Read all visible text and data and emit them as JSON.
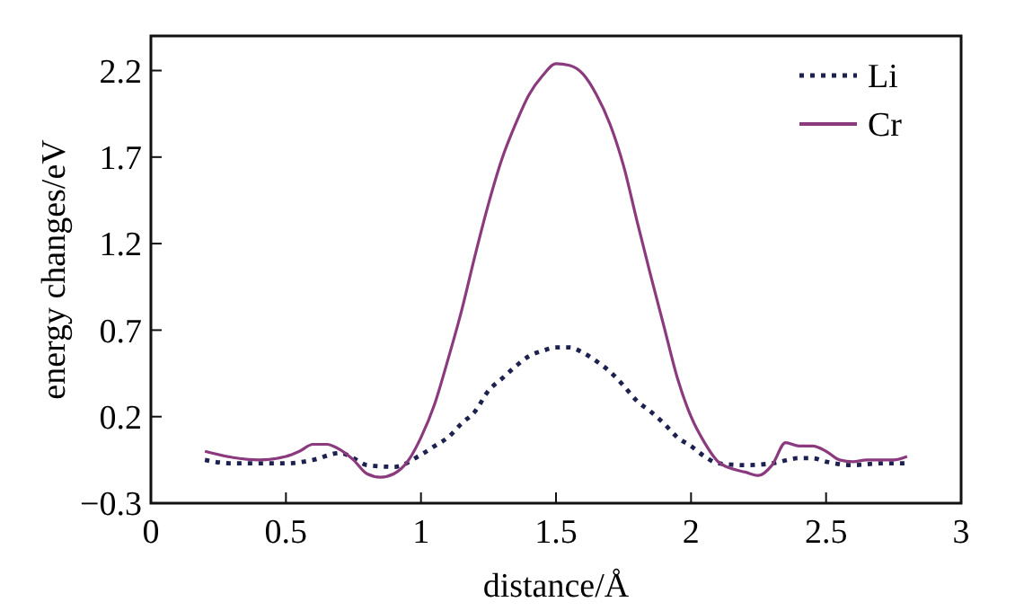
{
  "chart_data": {
    "type": "line",
    "xlabel": "distance/Å",
    "ylabel": "energy changes/eV",
    "xlim": [
      0,
      3
    ],
    "xticks": [
      0,
      0.5,
      1,
      1.5,
      2,
      2.5,
      3
    ],
    "ylim": [
      -0.3,
      2.4
    ],
    "yticks": [
      {
        "value": -0.3,
        "label": "−0.3"
      },
      0.2,
      0.7,
      1.2,
      1.7,
      2.2
    ],
    "grid": false,
    "legend": "top right",
    "series": [
      {
        "name": "Li",
        "color": "#1c2150",
        "line_style": "dotted",
        "x": [
          0.2,
          0.3,
          0.4,
          0.5,
          0.6,
          0.7,
          0.75,
          0.8,
          0.9,
          1.0,
          1.05,
          1.1,
          1.15,
          1.2,
          1.25,
          1.3,
          1.35,
          1.4,
          1.45,
          1.5,
          1.55,
          1.6,
          1.65,
          1.7,
          1.75,
          1.8,
          1.85,
          1.9,
          1.95,
          2.0,
          2.05,
          2.1,
          2.2,
          2.3,
          2.4,
          2.45,
          2.5,
          2.6,
          2.7,
          2.8
        ],
        "values": [
          -0.05,
          -0.07,
          -0.07,
          -0.07,
          -0.05,
          -0.01,
          -0.04,
          -0.08,
          -0.09,
          -0.02,
          0.03,
          0.08,
          0.16,
          0.23,
          0.35,
          0.42,
          0.49,
          0.55,
          0.58,
          0.6,
          0.6,
          0.57,
          0.52,
          0.46,
          0.38,
          0.29,
          0.23,
          0.16,
          0.08,
          0.03,
          -0.03,
          -0.07,
          -0.08,
          -0.07,
          -0.04,
          -0.04,
          -0.06,
          -0.08,
          -0.07,
          -0.07
        ]
      },
      {
        "name": "Cr",
        "color": "#8b3a7e",
        "line_style": "solid",
        "x": [
          0.2,
          0.3,
          0.4,
          0.5,
          0.55,
          0.6,
          0.65,
          0.7,
          0.75,
          0.8,
          0.85,
          0.9,
          0.95,
          1.0,
          1.05,
          1.1,
          1.15,
          1.2,
          1.25,
          1.3,
          1.35,
          1.4,
          1.45,
          1.5,
          1.55,
          1.6,
          1.65,
          1.7,
          1.75,
          1.8,
          1.85,
          1.9,
          1.95,
          2.0,
          2.05,
          2.1,
          2.15,
          2.2,
          2.25,
          2.3,
          2.35,
          2.4,
          2.45,
          2.5,
          2.55,
          2.6,
          2.65,
          2.7,
          2.75,
          2.8
        ],
        "values": [
          0.0,
          -0.035,
          -0.05,
          -0.03,
          0.0,
          0.04,
          0.04,
          0.01,
          -0.05,
          -0.13,
          -0.15,
          -0.13,
          -0.06,
          0.08,
          0.27,
          0.53,
          0.81,
          1.13,
          1.43,
          1.69,
          1.89,
          2.06,
          2.17,
          2.24,
          2.23,
          2.18,
          2.06,
          1.89,
          1.65,
          1.33,
          1.02,
          0.72,
          0.42,
          0.2,
          0.05,
          -0.06,
          -0.1,
          -0.12,
          -0.14,
          -0.08,
          0.05,
          0.03,
          0.03,
          0.0,
          -0.05,
          -0.06,
          -0.05,
          -0.05,
          -0.05,
          -0.03
        ]
      }
    ]
  }
}
